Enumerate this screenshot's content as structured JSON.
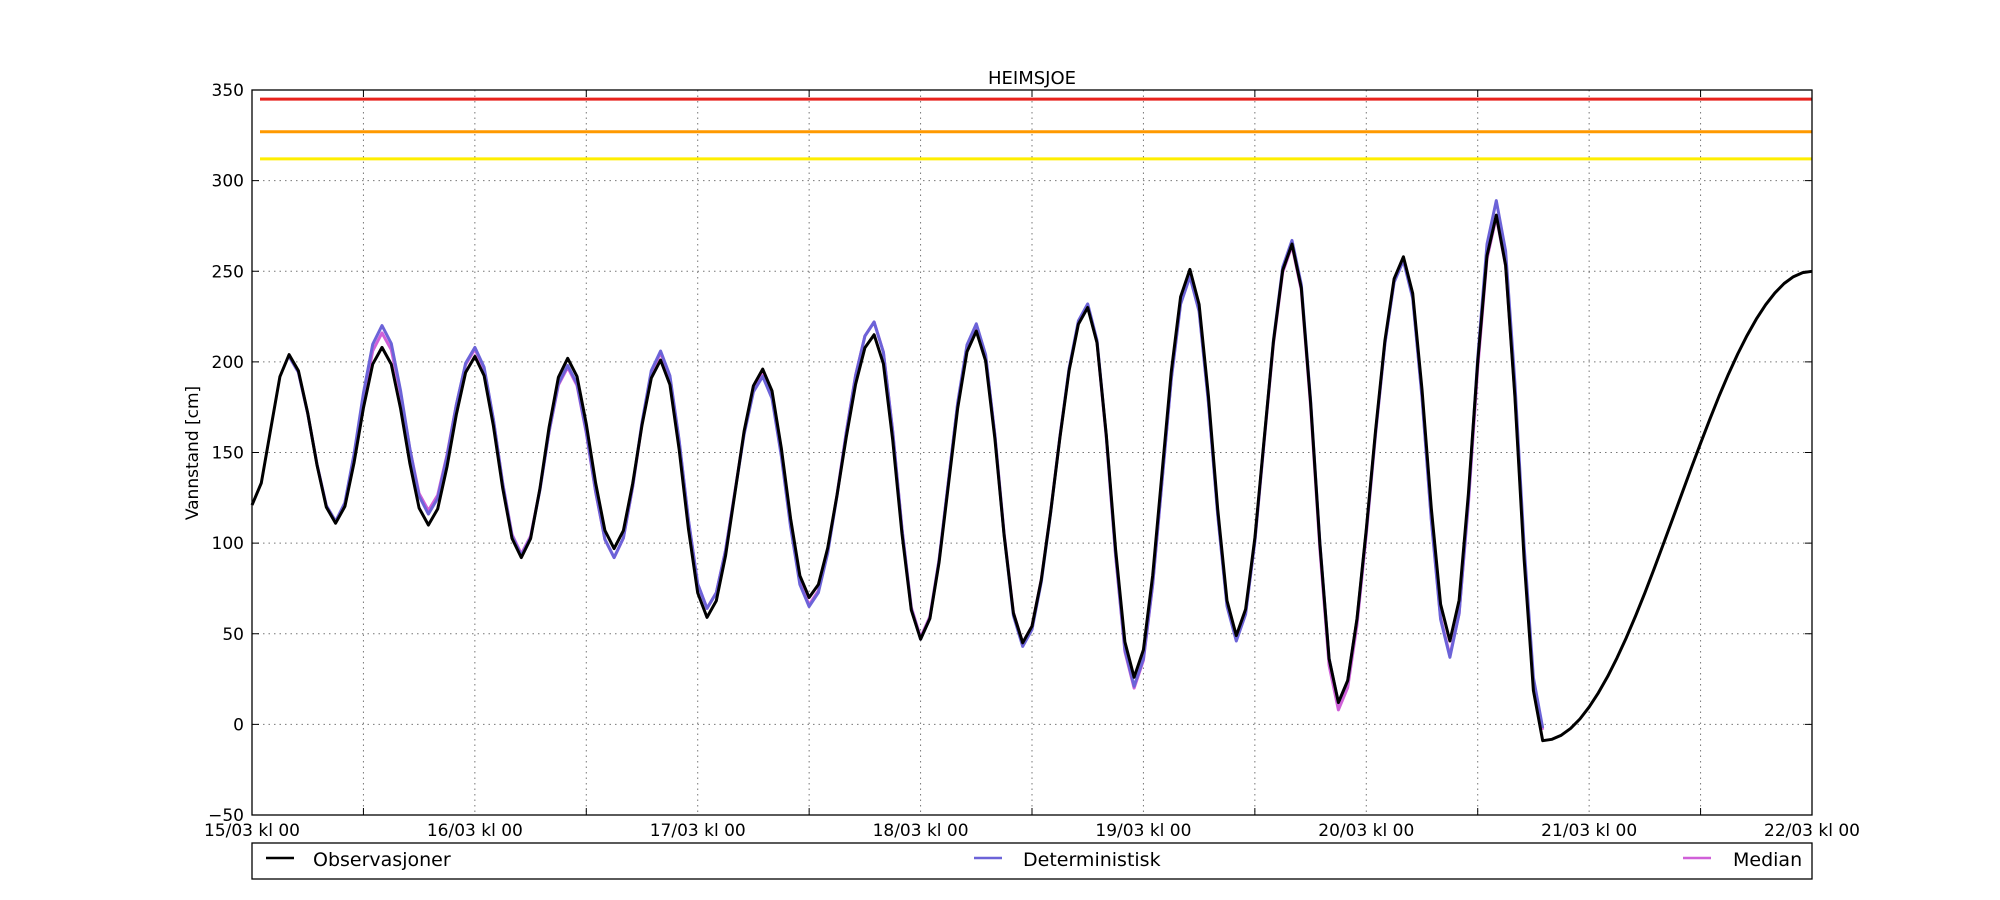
{
  "chart_data": {
    "type": "line",
    "title": "HEIMSJOE",
    "xlabel": "",
    "ylabel": "Vannstand [cm]",
    "xlim": [
      0,
      168
    ],
    "ylim": [
      -50,
      350
    ],
    "yticks": [
      -50,
      0,
      50,
      100,
      150,
      200,
      250,
      300,
      350
    ],
    "xticks": [
      {
        "hours": 0,
        "label": "15/03 kl 00"
      },
      {
        "hours": 24,
        "label": "16/03 kl 00"
      },
      {
        "hours": 48,
        "label": "17/03 kl 00"
      },
      {
        "hours": 72,
        "label": "18/03 kl 00"
      },
      {
        "hours": 96,
        "label": "19/03 kl 00"
      },
      {
        "hours": 120,
        "label": "20/03 kl 00"
      },
      {
        "hours": 144,
        "label": "21/03 kl 00"
      },
      {
        "hours": 168,
        "label": "22/03 kl 00"
      }
    ],
    "minor_xticks": [
      12,
      36,
      60,
      84,
      108,
      132,
      156
    ],
    "grid": true,
    "legend_placement": "bottom",
    "thresholds": [
      {
        "value": 345,
        "color": "#e8221c"
      },
      {
        "value": 327,
        "color": "#ff9900"
      },
      {
        "value": 312,
        "color": "#ffee00"
      }
    ],
    "series": [
      {
        "name": "Median",
        "color": "#d060d8",
        "points": [
          [
            4,
            203
          ],
          [
            9,
            112
          ],
          [
            14,
            216
          ],
          [
            19,
            118
          ],
          [
            24,
            207
          ],
          [
            29,
            94
          ],
          [
            34,
            197
          ],
          [
            39,
            92
          ],
          [
            44,
            205
          ],
          [
            49,
            64
          ],
          [
            55,
            193
          ],
          [
            60,
            66
          ],
          [
            67,
            222
          ],
          [
            72,
            48
          ],
          [
            78,
            220
          ],
          [
            83,
            45
          ],
          [
            90,
            231
          ],
          [
            95,
            20
          ],
          [
            101,
            248
          ],
          [
            106,
            47
          ],
          [
            112,
            264
          ],
          [
            117,
            8
          ],
          [
            124,
            257
          ],
          [
            129,
            38
          ],
          [
            134,
            280
          ],
          [
            139,
            -3
          ]
        ]
      },
      {
        "name": "Deterministisk",
        "color": "#6c63d8",
        "points": [
          [
            4,
            203
          ],
          [
            9,
            112
          ],
          [
            14,
            220
          ],
          [
            19,
            116
          ],
          [
            24,
            208
          ],
          [
            29,
            93
          ],
          [
            34,
            198
          ],
          [
            39,
            92
          ],
          [
            44,
            206
          ],
          [
            49,
            64
          ],
          [
            55,
            192
          ],
          [
            60,
            65
          ],
          [
            67,
            222
          ],
          [
            72,
            47
          ],
          [
            78,
            221
          ],
          [
            83,
            43
          ],
          [
            90,
            232
          ],
          [
            95,
            21
          ],
          [
            101,
            247
          ],
          [
            106,
            46
          ],
          [
            112,
            267
          ],
          [
            117,
            12
          ],
          [
            124,
            256
          ],
          [
            129,
            37
          ],
          [
            134,
            289
          ],
          [
            139,
            -2
          ]
        ]
      },
      {
        "name": "Observasjoner",
        "color": "#000000",
        "points": [
          [
            0,
            121
          ],
          [
            4,
            204
          ],
          [
            9,
            111
          ],
          [
            14,
            208
          ],
          [
            19,
            110
          ],
          [
            24,
            203
          ],
          [
            29,
            92
          ],
          [
            34,
            202
          ],
          [
            39,
            97
          ],
          [
            44,
            201
          ],
          [
            49,
            59
          ],
          [
            55,
            196
          ],
          [
            60,
            70
          ],
          [
            67,
            215
          ],
          [
            72,
            47
          ],
          [
            78,
            217
          ],
          [
            83,
            45
          ],
          [
            90,
            230
          ],
          [
            95,
            26
          ],
          [
            101,
            251
          ],
          [
            106,
            49
          ],
          [
            112,
            265
          ],
          [
            117,
            12
          ],
          [
            124,
            258
          ],
          [
            129,
            46
          ],
          [
            134,
            281
          ],
          [
            139,
            -9
          ],
          [
            168,
            250
          ]
        ]
      }
    ],
    "legend": [
      "Observasjoner",
      "Deterministisk",
      "Median"
    ]
  }
}
